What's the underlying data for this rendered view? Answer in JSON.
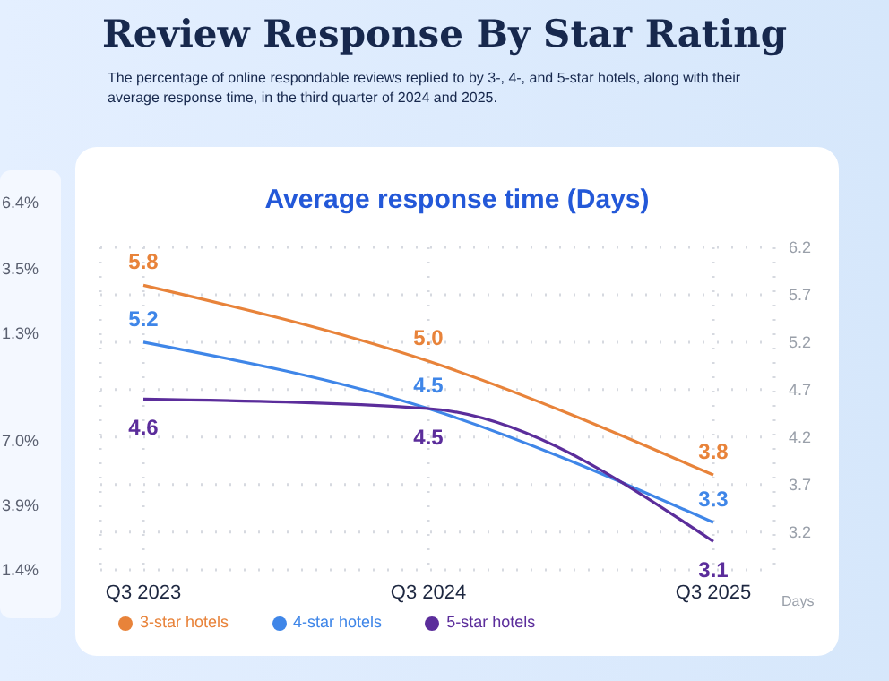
{
  "chart_data": {
    "type": "line",
    "title": "Review Response By Star Rating",
    "subtitle": "The percentage of online respondable reviews replied to by 3-, 4-, and 5-star hotels, along with their average response time, in the third quarter of 2024 and 2025.",
    "legend_title": "Average response time (Days)",
    "ylabel": "Days",
    "categories": [
      "Q3 2023",
      "Q3 2024",
      "Q3 2025"
    ],
    "series": [
      {
        "name": "3-star hotels",
        "color": "#e8833a",
        "values": [
          5.8,
          5.0,
          3.8
        ],
        "value_labels": [
          "5.8",
          "5.0",
          "3.8"
        ]
      },
      {
        "name": "4-star hotels",
        "color": "#3f86e8",
        "values": [
          5.2,
          4.5,
          3.3
        ],
        "value_labels": [
          "5.2",
          "4.5",
          "3.3"
        ]
      },
      {
        "name": "5-star hotels",
        "color": "#5b2d9b",
        "values": [
          4.6,
          4.5,
          3.1
        ],
        "value_labels": [
          "4.6",
          "4.5",
          "3.1"
        ]
      }
    ],
    "ylim": [
      2.8,
      6.2
    ],
    "yticks": [
      3.2,
      3.7,
      4.2,
      4.7,
      5.2,
      5.7,
      6.2
    ],
    "grid": true,
    "legend": "bottom left",
    "marker": "none",
    "line_style": "solid",
    "annotations": [
      "6.4%",
      "3.5%",
      "1.3%",
      "7.0%",
      "3.9%",
      "1.4%"
    ]
  }
}
